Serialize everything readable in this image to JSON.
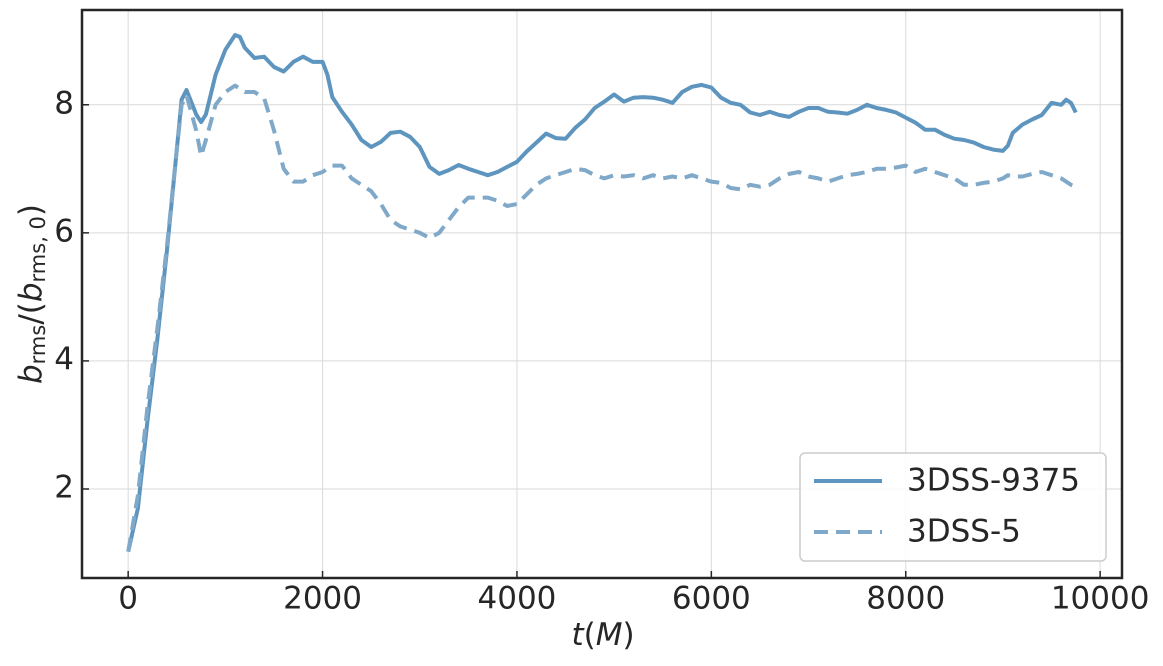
{
  "chart_data": {
    "type": "line",
    "x_label": [
      "t",
      "(",
      "M",
      ")"
    ],
    "y_label": [
      "b",
      "rms",
      "/(",
      "b",
      "rms, 0",
      ")"
    ],
    "x": [
      0,
      100,
      200,
      300,
      400,
      500,
      550,
      600,
      700,
      750,
      800,
      900,
      1000,
      1100,
      1150,
      1200,
      1300,
      1400,
      1500,
      1600,
      1700,
      1800,
      1900,
      2000,
      2050,
      2100,
      2200,
      2300,
      2400,
      2500,
      2600,
      2700,
      2800,
      2900,
      3000,
      3100,
      3200,
      3300,
      3400,
      3500,
      3600,
      3700,
      3800,
      3900,
      4000,
      4100,
      4200,
      4300,
      4400,
      4500,
      4600,
      4700,
      4800,
      4900,
      5000,
      5100,
      5200,
      5300,
      5400,
      5500,
      5600,
      5700,
      5800,
      5900,
      6000,
      6100,
      6200,
      6300,
      6400,
      6500,
      6600,
      6700,
      6800,
      6900,
      7000,
      7100,
      7200,
      7300,
      7400,
      7500,
      7600,
      7700,
      7800,
      7900,
      8000,
      8100,
      8200,
      8300,
      8400,
      8500,
      8600,
      8700,
      8800,
      8900,
      9000,
      9050,
      9100,
      9200,
      9300,
      9400,
      9500,
      9600,
      9650,
      9700,
      9750
    ],
    "series": [
      {
        "name": "3DSS-9375",
        "color": "#5e95bf",
        "dashed": false,
        "values": [
          1.02,
          1.7,
          3.08,
          4.33,
          5.73,
          7.3,
          8.08,
          8.23,
          7.85,
          7.73,
          7.85,
          8.47,
          8.86,
          9.09,
          9.06,
          8.89,
          8.73,
          8.75,
          8.59,
          8.52,
          8.67,
          8.75,
          8.67,
          8.67,
          8.47,
          8.12,
          7.89,
          7.69,
          7.45,
          7.34,
          7.42,
          7.56,
          7.58,
          7.5,
          7.34,
          7.03,
          6.92,
          6.98,
          7.06,
          7.0,
          6.95,
          6.9,
          6.95,
          7.03,
          7.11,
          7.27,
          7.41,
          7.55,
          7.48,
          7.47,
          7.64,
          7.77,
          7.95,
          8.05,
          8.16,
          8.05,
          8.11,
          8.12,
          8.11,
          8.08,
          8.03,
          8.2,
          8.28,
          8.31,
          8.27,
          8.11,
          8.03,
          8.0,
          7.88,
          7.84,
          7.89,
          7.84,
          7.81,
          7.89,
          7.95,
          7.95,
          7.89,
          7.88,
          7.86,
          7.92,
          8.0,
          7.95,
          7.92,
          7.88,
          7.8,
          7.72,
          7.61,
          7.61,
          7.53,
          7.47,
          7.45,
          7.41,
          7.34,
          7.3,
          7.28,
          7.36,
          7.56,
          7.69,
          7.77,
          7.84,
          8.03,
          8.0,
          8.08,
          8.03,
          7.88
        ]
      },
      {
        "name": "3DSS-5",
        "color": "#80a9c9",
        "dashed": true,
        "values": [
          1.02,
          1.9,
          3.3,
          4.5,
          5.8,
          7.3,
          8.0,
          8.15,
          7.6,
          7.2,
          7.45,
          8.0,
          8.2,
          8.3,
          8.25,
          8.2,
          8.2,
          8.1,
          7.6,
          7.0,
          6.8,
          6.8,
          6.9,
          6.95,
          7.0,
          7.05,
          7.05,
          6.85,
          6.75,
          6.65,
          6.45,
          6.2,
          6.1,
          6.05,
          6.0,
          5.92,
          6.0,
          6.2,
          6.4,
          6.55,
          6.55,
          6.55,
          6.5,
          6.42,
          6.45,
          6.6,
          6.75,
          6.85,
          6.9,
          6.95,
          7.0,
          6.98,
          6.9,
          6.85,
          6.9,
          6.88,
          6.9,
          6.85,
          6.9,
          6.85,
          6.88,
          6.85,
          6.9,
          6.85,
          6.8,
          6.78,
          6.7,
          6.68,
          6.75,
          6.72,
          6.75,
          6.85,
          6.92,
          6.95,
          6.88,
          6.85,
          6.8,
          6.85,
          6.9,
          6.92,
          6.95,
          7.0,
          7.0,
          7.02,
          7.05,
          6.95,
          7.0,
          6.95,
          6.9,
          6.85,
          6.75,
          6.75,
          6.78,
          6.8,
          6.85,
          6.9,
          6.88,
          6.88,
          6.92,
          6.95,
          6.9,
          6.85,
          6.8,
          6.75,
          6.72
        ]
      }
    ],
    "xlim": [
      -475,
      10225
    ],
    "ylim": [
      0.61,
      9.48
    ],
    "xticks": [
      0,
      2000,
      4000,
      6000,
      8000,
      10000
    ],
    "yticks": [
      2,
      4,
      6,
      8
    ],
    "grid": true,
    "legend": "lower right"
  }
}
